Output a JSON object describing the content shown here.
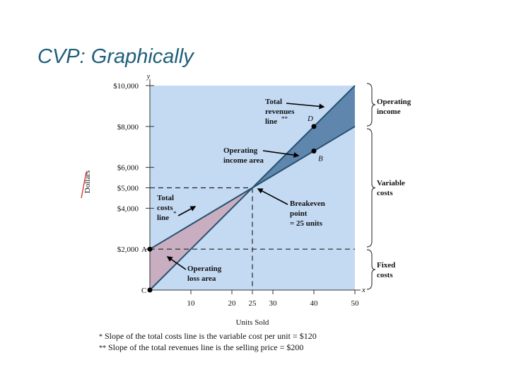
{
  "slide_title": "CVP: Graphically",
  "chart_data": {
    "type": "line",
    "xlabel": "Units Sold",
    "ylabel": "Dollars",
    "xlim": [
      0,
      50
    ],
    "ylim": [
      0,
      10000
    ],
    "x_ticks": [
      10,
      20,
      25,
      30,
      40,
      50
    ],
    "x_tick_labels": [
      "10",
      "20",
      "25",
      "30",
      "40",
      "50"
    ],
    "y_ticks": [
      2000,
      4000,
      5000,
      6000,
      8000,
      10000
    ],
    "y_tick_labels": [
      "$2,000",
      "$4,000",
      "$5,000",
      "$6,000",
      "$8,000",
      "$10,000"
    ],
    "x_axis_letter": "x",
    "y_axis_letter": "y",
    "series": [
      {
        "name": "Total costs line",
        "x": [
          0,
          50
        ],
        "y": [
          2000,
          8000
        ],
        "color": "#27506e"
      },
      {
        "name": "Total revenues line",
        "x": [
          0,
          50
        ],
        "y": [
          0,
          10000
        ],
        "color": "#27506e"
      },
      {
        "name": "Fixed costs",
        "x": [
          0,
          50
        ],
        "y": [
          2000,
          2000
        ],
        "style": "dashed"
      }
    ],
    "points": [
      {
        "label": "A",
        "x": 0,
        "y": 2000
      },
      {
        "label": "C",
        "x": 0,
        "y": 0
      },
      {
        "label": "D",
        "x": 40,
        "y": 8000
      },
      {
        "label": "B",
        "x": 40,
        "y": 6800
      }
    ],
    "breakeven": {
      "x": 25,
      "y": 5000
    },
    "annotations": {
      "total_revenues": [
        "Total",
        "revenues",
        "line"
      ],
      "total_revenues_mark": "**",
      "operating_income_area": [
        "Operating",
        "income area"
      ],
      "total_costs": [
        "Total",
        "costs",
        "line"
      ],
      "total_costs_mark": "*",
      "breakeven_point": [
        "Breakeven",
        "point",
        "= 25 units"
      ],
      "operating_loss_area": [
        "Operating",
        "loss area"
      ]
    },
    "brackets": {
      "operating_income": [
        "Operating",
        "income"
      ],
      "variable_costs": [
        "Variable",
        "costs"
      ],
      "fixed_costs": [
        "Fixed",
        "costs"
      ]
    },
    "colors": {
      "plot_bg": "#c4daf3",
      "income_area": "#5f87ad",
      "loss_area": "#c8aec0",
      "line": "#27506e"
    }
  },
  "footnotes": [
    {
      "mark": "*",
      "text": "Slope of the total costs line is the variable cost per unit = $120"
    },
    {
      "mark": "**",
      "text": "Slope of the total revenues line is the selling price = $200"
    }
  ]
}
